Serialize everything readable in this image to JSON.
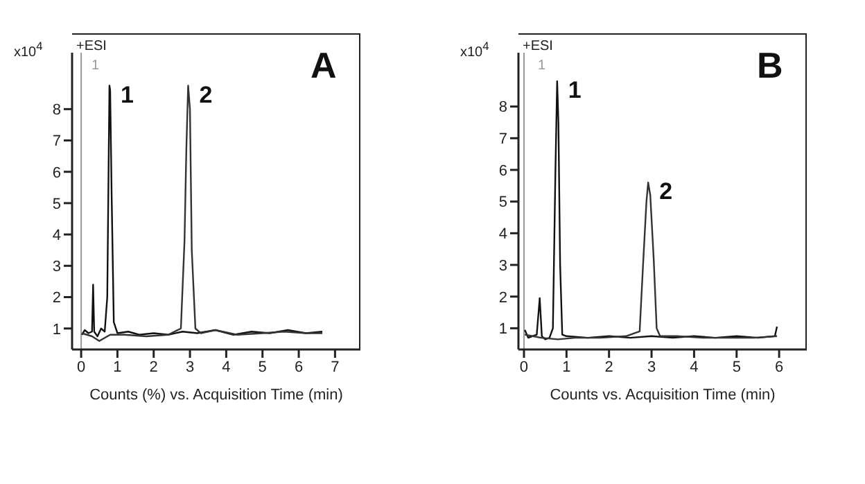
{
  "chart_data": [
    {
      "type": "line",
      "xlabel": "Counts (%) vs. Acquisition Time (min)",
      "ylabel": "x10$^{4}$",
      "annotations": [
        "+ESI",
        "A",
        "1",
        {
          "text": "1",
          "x": 0.78,
          "y": 8.75
        },
        {
          "text": "2",
          "x": 2.95,
          "y": 8.75
        }
      ],
      "xlim": [
        -0.25,
        7.7
      ],
      "xticks": [
        0,
        1,
        2,
        3,
        4,
        5,
        6,
        7
      ],
      "ylim": [
        0.33,
        9.8
      ],
      "yticks": [
        1,
        2,
        3,
        4,
        5,
        6,
        7,
        8
      ],
      "marker": "none",
      "line_style": "solid",
      "ref_lines": [
        {
          "axis": "x",
          "value": 0,
          "color": "#999999"
        }
      ],
      "series": [
        {
          "color": "#111111",
          "x": [
            0.02,
            0.1,
            0.2,
            0.3,
            0.33,
            0.36,
            0.45,
            0.55,
            0.65,
            0.72,
            0.76,
            0.78,
            0.8,
            0.84,
            0.9,
            1.0,
            1.3,
            1.6,
            2.0,
            2.4,
            2.8,
            3.2,
            3.7,
            4.2,
            4.7,
            5.2,
            5.7,
            6.2,
            6.65
          ],
          "values": [
            0.8,
            0.95,
            0.85,
            0.9,
            2.4,
            0.9,
            0.75,
            1.0,
            0.9,
            2.0,
            6.5,
            8.75,
            8.6,
            5.3,
            1.2,
            0.85,
            0.9,
            0.8,
            0.85,
            0.8,
            0.9,
            0.85,
            0.95,
            0.8,
            0.9,
            0.85,
            0.95,
            0.85,
            0.9
          ]
        },
        {
          "color": "#333333",
          "x": [
            0.02,
            0.3,
            0.5,
            0.8,
            1.2,
            1.8,
            2.4,
            2.75,
            2.85,
            2.9,
            2.95,
            3.0,
            3.05,
            3.15,
            3.3,
            3.7,
            4.3,
            5.0,
            5.6,
            6.2,
            6.65
          ],
          "values": [
            0.85,
            0.75,
            0.6,
            0.8,
            0.8,
            0.75,
            0.8,
            1.0,
            3.8,
            6.7,
            8.75,
            8.0,
            3.5,
            1.0,
            0.85,
            0.95,
            0.8,
            0.85,
            0.9,
            0.85,
            0.85
          ]
        }
      ]
    },
    {
      "type": "line",
      "xlabel": "Counts vs. Acquisition Time (min)",
      "ylabel": "x10$^{4}$",
      "annotations": [
        "+ESI",
        "B",
        "1",
        {
          "text": "1",
          "x": 0.78,
          "y": 8.8
        },
        {
          "text": "2",
          "x": 2.92,
          "y": 5.6
        }
      ],
      "xlim": [
        -0.13,
        6.65
      ],
      "xticks": [
        0,
        1,
        2,
        3,
        4,
        5,
        6
      ],
      "ylim": [
        0.33,
        9.7
      ],
      "yticks": [
        1,
        2,
        3,
        4,
        5,
        6,
        7,
        8
      ],
      "marker": "none",
      "line_style": "solid",
      "ref_lines": [
        {
          "axis": "x",
          "value": 0,
          "color": "#999999"
        }
      ],
      "series": [
        {
          "color": "#111111",
          "x": [
            0.02,
            0.1,
            0.2,
            0.3,
            0.37,
            0.42,
            0.5,
            0.6,
            0.68,
            0.74,
            0.78,
            0.81,
            0.85,
            0.9,
            1.0,
            1.5,
            2.0,
            2.5,
            3.0,
            3.5,
            4.0,
            4.5,
            5.0,
            5.5,
            5.9,
            5.95
          ],
          "values": [
            0.95,
            0.7,
            0.75,
            0.8,
            1.95,
            0.75,
            0.65,
            0.7,
            1.0,
            6.0,
            8.8,
            7.5,
            3.0,
            0.8,
            0.75,
            0.7,
            0.75,
            0.7,
            0.75,
            0.7,
            0.75,
            0.7,
            0.75,
            0.7,
            0.75,
            1.05
          ]
        },
        {
          "color": "#333333",
          "x": [
            0.02,
            0.4,
            0.8,
            1.2,
            1.8,
            2.4,
            2.72,
            2.8,
            2.88,
            2.92,
            2.97,
            3.05,
            3.12,
            3.2,
            3.6,
            4.2,
            4.8,
            5.4,
            5.95
          ],
          "values": [
            0.8,
            0.7,
            0.65,
            0.7,
            0.7,
            0.75,
            0.9,
            3.0,
            5.0,
            5.6,
            5.2,
            3.2,
            1.0,
            0.75,
            0.75,
            0.7,
            0.7,
            0.7,
            0.75
          ]
        }
      ]
    }
  ]
}
